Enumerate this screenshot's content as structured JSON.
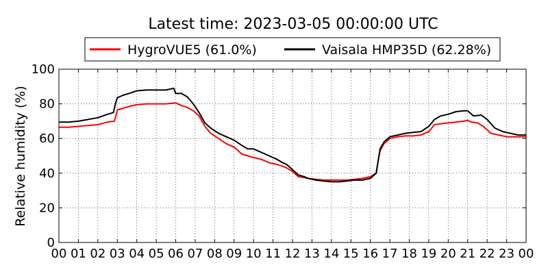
{
  "chart_data": {
    "type": "line",
    "title": "Latest time: 2023-03-05 00:00:00 UTC",
    "xlabel": "",
    "ylabel": "Relative humidity (%)",
    "xlim": [
      0,
      24
    ],
    "ylim": [
      0,
      100
    ],
    "x_ticks": [
      0,
      1,
      2,
      3,
      4,
      5,
      6,
      7,
      8,
      9,
      10,
      11,
      12,
      13,
      14,
      15,
      16,
      17,
      18,
      19,
      20,
      21,
      22,
      23,
      24
    ],
    "x_tick_labels": [
      "00",
      "01",
      "02",
      "03",
      "04",
      "05",
      "06",
      "07",
      "08",
      "09",
      "10",
      "11",
      "12",
      "13",
      "14",
      "15",
      "16",
      "17",
      "18",
      "19",
      "20",
      "21",
      "22",
      "23",
      "00"
    ],
    "y_ticks": [
      0,
      20,
      40,
      60,
      80,
      100
    ],
    "grid": true,
    "legend_position": "top-center",
    "series": [
      {
        "name": "HygroVUE5 (61.0%)",
        "color": "#ff0000",
        "x": [
          0,
          0.5,
          1,
          1.5,
          2,
          2.5,
          2.85,
          2.95,
          3,
          3.3,
          3.6,
          4,
          4.5,
          5,
          5.5,
          6,
          6.3,
          6.6,
          6.9,
          7.2,
          7.5,
          7.8,
          8.2,
          8.6,
          9,
          9.4,
          9.7,
          10,
          10.4,
          10.8,
          11.2,
          11.5,
          11.7,
          12,
          12.3,
          12.6,
          12.8,
          13.2,
          13.6,
          14,
          14.4,
          14.8,
          15.2,
          15.6,
          16,
          16.3,
          16.4,
          16.5,
          16.7,
          17,
          17.4,
          17.8,
          18.2,
          18.6,
          19,
          19.3,
          19.6,
          20,
          20.4,
          20.8,
          21,
          21.2,
          21.5,
          21.8,
          22.2,
          22.6,
          23,
          23.5,
          24
        ],
        "values": [
          66.5,
          66.5,
          67,
          67.5,
          68,
          69.5,
          70,
          74,
          76.5,
          77.5,
          78.5,
          79.5,
          80,
          80,
          80,
          80.5,
          79,
          78,
          76,
          73,
          67,
          63,
          60,
          57,
          55,
          51,
          50,
          49,
          48,
          46,
          45,
          44,
          43,
          41,
          38,
          37.5,
          37,
          36.5,
          36,
          36,
          36,
          36,
          36.5,
          37,
          38,
          40,
          47,
          53,
          57,
          60,
          61,
          61.5,
          61.5,
          62,
          64,
          68,
          68.5,
          69,
          69.5,
          70,
          70.5,
          69.5,
          69,
          67,
          63,
          62,
          61,
          61,
          61
        ]
      },
      {
        "name": "Vaisala HMP35D (62.28%)",
        "color": "#000000",
        "x": [
          0,
          0.5,
          1,
          1.5,
          2,
          2.5,
          2.8,
          2.9,
          3,
          3.3,
          3.6,
          4,
          4.5,
          5,
          5.5,
          5.9,
          6,
          6.3,
          6.6,
          6.9,
          7.2,
          7.5,
          7.8,
          8.2,
          8.6,
          9,
          9.4,
          9.7,
          10,
          10.4,
          10.8,
          11.2,
          11.5,
          11.7,
          12,
          12.3,
          12.6,
          12.8,
          13.2,
          13.6,
          14,
          14.4,
          14.8,
          15.2,
          15.6,
          16,
          16.3,
          16.4,
          16.5,
          16.7,
          17,
          17.4,
          17.8,
          18.2,
          18.6,
          19,
          19.3,
          19.6,
          20,
          20.4,
          20.8,
          21,
          21.3,
          21.7,
          22,
          22.4,
          22.8,
          23.2,
          23.6,
          24
        ],
        "values": [
          69.5,
          69.5,
          70,
          71,
          72,
          74,
          75,
          80,
          83.5,
          85,
          86,
          87.5,
          88,
          88,
          88,
          89,
          86,
          86,
          84,
          80,
          75,
          69,
          66,
          63,
          61,
          59,
          56,
          54,
          54,
          52,
          50,
          48,
          46,
          45,
          42,
          39,
          38,
          37,
          36,
          35.5,
          35,
          35,
          35.5,
          36,
          36,
          37,
          40,
          47,
          54,
          58,
          61,
          62,
          63,
          63.5,
          64,
          67,
          71,
          73,
          74,
          75.5,
          76,
          76,
          73,
          73.5,
          71,
          66,
          64,
          63,
          62,
          62
        ]
      }
    ]
  }
}
